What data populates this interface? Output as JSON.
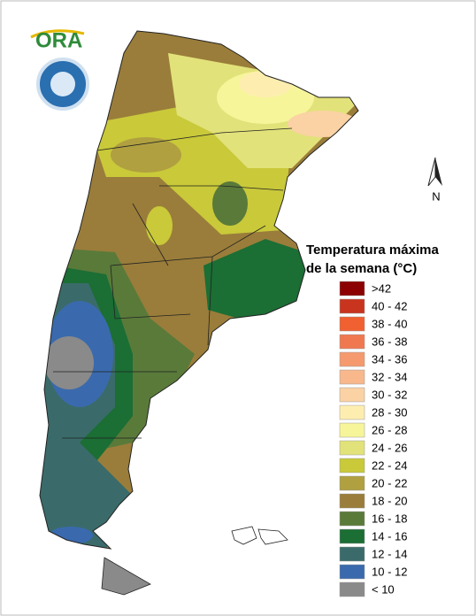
{
  "logo": {
    "text": "ORA"
  },
  "compass": {
    "label": "N"
  },
  "legend": {
    "title_lines": [
      "Temperatura máxima",
      "de la semana (°C)"
    ],
    "items": [
      {
        "label": ">42",
        "color": "#8b0000"
      },
      {
        "label": "40 - 42",
        "color": "#c8341e"
      },
      {
        "label": "38 - 40",
        "color": "#f06030"
      },
      {
        "label": "36 - 38",
        "color": "#f07850"
      },
      {
        "label": "34 - 36",
        "color": "#f59a6e"
      },
      {
        "label": "32 - 34",
        "color": "#f8b88c"
      },
      {
        "label": "30 - 32",
        "color": "#fad2a4"
      },
      {
        "label": "28 - 30",
        "color": "#fdeeb0"
      },
      {
        "label": "26 - 28",
        "color": "#f7f59a"
      },
      {
        "label": "24 - 26",
        "color": "#e2e27a"
      },
      {
        "label": "22 - 24",
        "color": "#c9c93a"
      },
      {
        "label": "20 - 22",
        "color": "#b0a040"
      },
      {
        "label": "18 - 20",
        "color": "#9a7d3a"
      },
      {
        "label": "16 - 18",
        "color": "#5a7a3a"
      },
      {
        "label": "14 - 16",
        "color": "#1b6e34"
      },
      {
        "label": "12 - 14",
        "color": "#3a6b6a"
      },
      {
        "label": "10 - 12",
        "color": "#3a6aad"
      },
      {
        "label": "< 10",
        "color": "#8a8a8a"
      }
    ]
  }
}
